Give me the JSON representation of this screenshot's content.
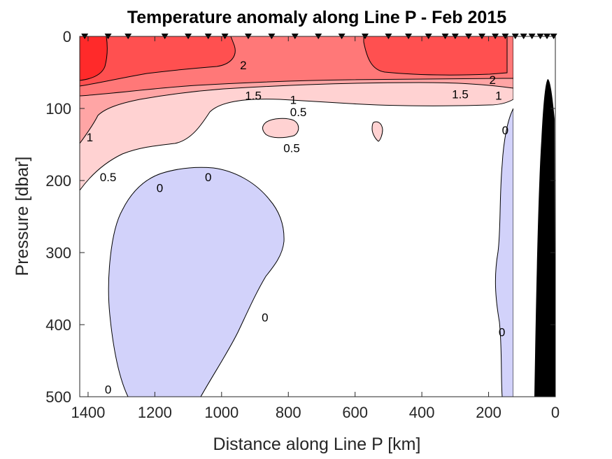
{
  "chart_data": {
    "type": "contour",
    "title": "Temperature anomaly along Line P - Feb 2015",
    "xlabel": "Distance along Line P [km]",
    "ylabel": "Pressure [dbar]",
    "x_reversed": true,
    "y_reversed": true,
    "xlim": [
      1425,
      0
    ],
    "ylim": [
      0,
      500
    ],
    "xticks": [
      1400,
      1200,
      1000,
      800,
      600,
      400,
      200,
      0
    ],
    "yticks": [
      0,
      100,
      200,
      300,
      400,
      500
    ],
    "contour_levels": [
      0,
      0.5,
      1,
      1.5,
      2
    ],
    "fill_colors": {
      "below_0": "#D2D2FA",
      "0_to_0.5": "#FFFFFF",
      "0.5_to_1": "#FFD2D2",
      "1_to_1.5": "#FFA5A5",
      "1.5_to_2": "#FF7878",
      "2_to_2.5": "#FF5050",
      "above_2.5": "#FF2A2A"
    },
    "data_extent_km": [
      1410,
      130
    ],
    "bathymetry_color": "#000000",
    "station_markers_km": [
      1410,
      1340,
      1280,
      1170,
      1100,
      1040,
      990,
      920,
      850,
      780,
      710,
      640,
      570,
      500,
      440,
      380,
      330,
      300,
      260,
      220,
      180,
      150,
      120,
      95,
      70,
      45,
      25,
      5
    ],
    "contour_labels": [
      {
        "text": "2",
        "x": 935,
        "p": 40
      },
      {
        "text": "1.5",
        "x": 905,
        "p": 82
      },
      {
        "text": "1",
        "x": 785,
        "p": 88
      },
      {
        "text": "0.5",
        "x": 770,
        "p": 105
      },
      {
        "text": "2",
        "x": 188,
        "p": 60
      },
      {
        "text": "1.5",
        "x": 285,
        "p": 80
      },
      {
        "text": "1",
        "x": 170,
        "p": 82
      },
      {
        "text": "1",
        "x": 1395,
        "p": 140
      },
      {
        "text": "0.5",
        "x": 790,
        "p": 155
      },
      {
        "text": "0.5",
        "x": 1340,
        "p": 195
      },
      {
        "text": "0",
        "x": 1185,
        "p": 210
      },
      {
        "text": "0",
        "x": 1040,
        "p": 195
      },
      {
        "text": "0",
        "x": 150,
        "p": 130
      },
      {
        "text": "0",
        "x": 870,
        "p": 390
      },
      {
        "text": "0",
        "x": 160,
        "p": 410
      },
      {
        "text": "0",
        "x": 1340,
        "p": 490
      }
    ]
  }
}
